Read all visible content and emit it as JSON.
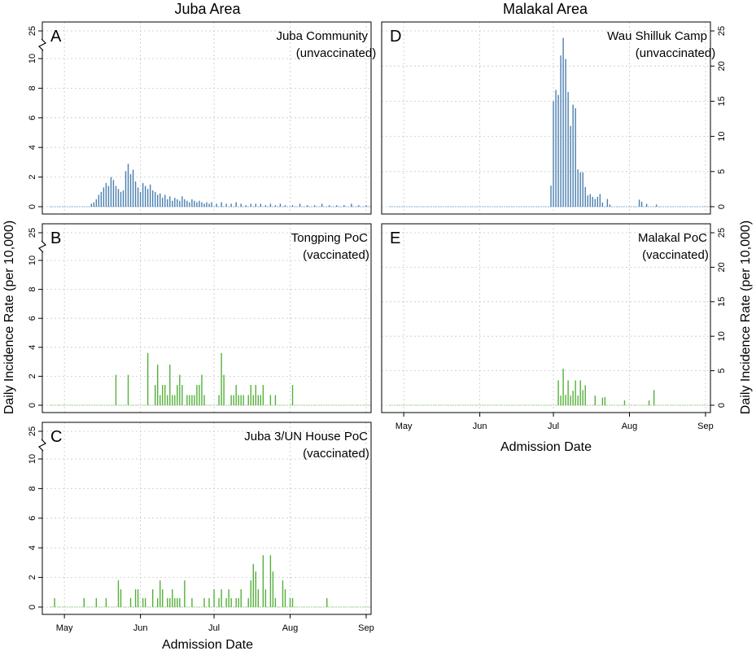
{
  "figure": {
    "left_column_title": "Juba Area",
    "right_column_title": "Malakal Area",
    "left_ylabel": "Daily Incidence Rate (per 10,000)",
    "right_ylabel": "Daily Incidence Rate (per 10,000)",
    "xlabel": "Admission Date",
    "x_ticks": [
      "May",
      "Jun",
      "Jul",
      "Aug",
      "Sep"
    ],
    "x_tick_dates": [
      "2015-05-01",
      "2015-06-01",
      "2015-07-01",
      "2015-08-01",
      "2015-09-01"
    ]
  },
  "colors": {
    "unvaccinated": "#4a7fb0",
    "vaccinated": "#55b03a",
    "baseline_unvaccinated": "#8fb4d4",
    "baseline_vaccinated": "#9fd38f",
    "grid": "#c8c8c8"
  },
  "chart_data": [
    {
      "id": "A",
      "type": "bar",
      "panel_letter": "A",
      "title": "Juba Community",
      "subtitle": "(unvaccinated)",
      "column": "left",
      "color_key": "unvaccinated",
      "xlim": [
        "2015-04-22",
        "2015-09-03"
      ],
      "y_scale": "broken",
      "y_ticks": [
        0,
        2,
        4,
        6,
        8,
        10
      ],
      "y_break_tick": 25,
      "ylim": [
        0,
        12
      ],
      "grid": true,
      "baseline_range": [
        "2015-04-25",
        "2015-09-03"
      ],
      "points": [
        [
          "2015-05-12",
          0.2
        ],
        [
          "2015-05-13",
          0.3
        ],
        [
          "2015-05-14",
          0.5
        ],
        [
          "2015-05-15",
          0.8
        ],
        [
          "2015-05-16",
          1.0
        ],
        [
          "2015-05-17",
          1.3
        ],
        [
          "2015-05-18",
          1.6
        ],
        [
          "2015-05-19",
          1.4
        ],
        [
          "2015-05-20",
          2.0
        ],
        [
          "2015-05-21",
          1.8
        ],
        [
          "2015-05-22",
          1.4
        ],
        [
          "2015-05-23",
          1.2
        ],
        [
          "2015-05-24",
          1.0
        ],
        [
          "2015-05-25",
          1.1
        ],
        [
          "2015-05-26",
          2.4
        ],
        [
          "2015-05-27",
          2.9
        ],
        [
          "2015-05-28",
          2.2
        ],
        [
          "2015-05-29",
          2.5
        ],
        [
          "2015-05-30",
          1.7
        ],
        [
          "2015-05-31",
          1.3
        ],
        [
          "2015-06-01",
          1.0
        ],
        [
          "2015-06-02",
          1.6
        ],
        [
          "2015-06-03",
          1.4
        ],
        [
          "2015-06-04",
          1.2
        ],
        [
          "2015-06-05",
          1.5
        ],
        [
          "2015-06-06",
          1.1
        ],
        [
          "2015-06-07",
          1.0
        ],
        [
          "2015-06-08",
          0.8
        ],
        [
          "2015-06-09",
          0.9
        ],
        [
          "2015-06-10",
          0.6
        ],
        [
          "2015-06-11",
          0.8
        ],
        [
          "2015-06-12",
          0.5
        ],
        [
          "2015-06-13",
          0.7
        ],
        [
          "2015-06-14",
          0.4
        ],
        [
          "2015-06-15",
          0.6
        ],
        [
          "2015-06-16",
          0.5
        ],
        [
          "2015-06-17",
          0.4
        ],
        [
          "2015-06-18",
          0.7
        ],
        [
          "2015-06-19",
          0.5
        ],
        [
          "2015-06-20",
          0.4
        ],
        [
          "2015-06-21",
          0.3
        ],
        [
          "2015-06-22",
          0.5
        ],
        [
          "2015-06-23",
          0.4
        ],
        [
          "2015-06-24",
          0.3
        ],
        [
          "2015-06-25",
          0.4
        ],
        [
          "2015-06-26",
          0.3
        ],
        [
          "2015-06-27",
          0.2
        ],
        [
          "2015-06-28",
          0.3
        ],
        [
          "2015-06-29",
          0.2
        ],
        [
          "2015-06-30",
          0.3
        ],
        [
          "2015-07-02",
          0.2
        ],
        [
          "2015-07-04",
          0.3
        ],
        [
          "2015-07-06",
          0.2
        ],
        [
          "2015-07-08",
          0.2
        ],
        [
          "2015-07-10",
          0.3
        ],
        [
          "2015-07-12",
          0.2
        ],
        [
          "2015-07-14",
          0.1
        ],
        [
          "2015-07-16",
          0.2
        ],
        [
          "2015-07-18",
          0.2
        ],
        [
          "2015-07-20",
          0.2
        ],
        [
          "2015-07-22",
          0.1
        ],
        [
          "2015-07-24",
          0.2
        ],
        [
          "2015-07-26",
          0.1
        ],
        [
          "2015-07-28",
          0.2
        ],
        [
          "2015-07-30",
          0.1
        ],
        [
          "2015-08-02",
          0.1
        ],
        [
          "2015-08-05",
          0.2
        ],
        [
          "2015-08-08",
          0.1
        ],
        [
          "2015-08-11",
          0.1
        ],
        [
          "2015-08-14",
          0.2
        ],
        [
          "2015-08-17",
          0.1
        ],
        [
          "2015-08-20",
          0.1
        ],
        [
          "2015-08-23",
          0.1
        ],
        [
          "2015-08-26",
          0.2
        ],
        [
          "2015-08-29",
          0.1
        ],
        [
          "2015-09-01",
          0.1
        ]
      ]
    },
    {
      "id": "B",
      "type": "bar",
      "panel_letter": "B",
      "title": "Tongping PoC",
      "subtitle": "(vaccinated)",
      "column": "left",
      "color_key": "vaccinated",
      "xlim": [
        "2015-04-22",
        "2015-09-03"
      ],
      "y_scale": "broken",
      "y_ticks": [
        0,
        2,
        4,
        6,
        8,
        10
      ],
      "y_break_tick": 25,
      "ylim": [
        0,
        12
      ],
      "grid": true,
      "baseline_range": [
        "2015-04-25",
        "2015-09-03"
      ],
      "points": [
        [
          "2015-05-22",
          2.1
        ],
        [
          "2015-05-27",
          2.1
        ],
        [
          "2015-06-04",
          3.6
        ],
        [
          "2015-06-07",
          1.4
        ],
        [
          "2015-06-08",
          2.8
        ],
        [
          "2015-06-09",
          0.7
        ],
        [
          "2015-06-10",
          1.4
        ],
        [
          "2015-06-11",
          1.4
        ],
        [
          "2015-06-12",
          0.7
        ],
        [
          "2015-06-13",
          2.8
        ],
        [
          "2015-06-14",
          0.7
        ],
        [
          "2015-06-15",
          0.7
        ],
        [
          "2015-06-16",
          1.4
        ],
        [
          "2015-06-17",
          2.1
        ],
        [
          "2015-06-18",
          1.4
        ],
        [
          "2015-06-20",
          0.7
        ],
        [
          "2015-06-21",
          0.7
        ],
        [
          "2015-06-22",
          0.7
        ],
        [
          "2015-06-23",
          0.7
        ],
        [
          "2015-06-24",
          1.4
        ],
        [
          "2015-06-25",
          1.4
        ],
        [
          "2015-06-26",
          2.1
        ],
        [
          "2015-06-27",
          0.7
        ],
        [
          "2015-07-03",
          0.7
        ],
        [
          "2015-07-04",
          3.6
        ],
        [
          "2015-07-05",
          2.1
        ],
        [
          "2015-07-08",
          0.7
        ],
        [
          "2015-07-09",
          0.7
        ],
        [
          "2015-07-10",
          1.4
        ],
        [
          "2015-07-11",
          0.7
        ],
        [
          "2015-07-12",
          0.7
        ],
        [
          "2015-07-13",
          0.7
        ],
        [
          "2015-07-15",
          0.7
        ],
        [
          "2015-07-16",
          1.4
        ],
        [
          "2015-07-17",
          0.7
        ],
        [
          "2015-07-18",
          1.4
        ],
        [
          "2015-07-19",
          0.7
        ],
        [
          "2015-07-20",
          0.7
        ],
        [
          "2015-07-21",
          1.4
        ],
        [
          "2015-07-24",
          0.7
        ],
        [
          "2015-07-26",
          0.7
        ],
        [
          "2015-08-02",
          1.4
        ]
      ]
    },
    {
      "id": "C",
      "type": "bar",
      "panel_letter": "C",
      "title": "Juba 3/UN House PoC",
      "subtitle": "(vaccinated)",
      "column": "left",
      "color_key": "vaccinated",
      "xlim": [
        "2015-04-22",
        "2015-09-03"
      ],
      "y_scale": "broken",
      "y_ticks": [
        0,
        2,
        4,
        6,
        8,
        10
      ],
      "y_break_tick": 25,
      "ylim": [
        0,
        12
      ],
      "grid": true,
      "baseline_range": [
        "2015-04-25",
        "2015-09-03"
      ],
      "points": [
        [
          "2015-04-27",
          0.6
        ],
        [
          "2015-05-09",
          0.6
        ],
        [
          "2015-05-14",
          0.6
        ],
        [
          "2015-05-18",
          0.6
        ],
        [
          "2015-05-23",
          1.8
        ],
        [
          "2015-05-24",
          1.2
        ],
        [
          "2015-05-28",
          0.6
        ],
        [
          "2015-05-30",
          1.2
        ],
        [
          "2015-05-31",
          1.2
        ],
        [
          "2015-06-02",
          0.6
        ],
        [
          "2015-06-03",
          0.6
        ],
        [
          "2015-06-06",
          1.2
        ],
        [
          "2015-06-08",
          0.6
        ],
        [
          "2015-06-09",
          1.8
        ],
        [
          "2015-06-10",
          1.2
        ],
        [
          "2015-06-12",
          0.6
        ],
        [
          "2015-06-13",
          0.6
        ],
        [
          "2015-06-14",
          1.2
        ],
        [
          "2015-06-15",
          0.6
        ],
        [
          "2015-06-16",
          0.6
        ],
        [
          "2015-06-17",
          0.6
        ],
        [
          "2015-06-19",
          1.8
        ],
        [
          "2015-06-22",
          0.6
        ],
        [
          "2015-06-27",
          0.6
        ],
        [
          "2015-06-29",
          0.6
        ],
        [
          "2015-07-01",
          1.2
        ],
        [
          "2015-07-03",
          0.6
        ],
        [
          "2015-07-04",
          1.2
        ],
        [
          "2015-07-06",
          0.6
        ],
        [
          "2015-07-07",
          1.2
        ],
        [
          "2015-07-08",
          0.6
        ],
        [
          "2015-07-10",
          0.6
        ],
        [
          "2015-07-11",
          0.6
        ],
        [
          "2015-07-12",
          1.2
        ],
        [
          "2015-07-15",
          0.6
        ],
        [
          "2015-07-16",
          1.8
        ],
        [
          "2015-07-17",
          2.9
        ],
        [
          "2015-07-18",
          2.4
        ],
        [
          "2015-07-19",
          1.2
        ],
        [
          "2015-07-21",
          3.5
        ],
        [
          "2015-07-22",
          1.2
        ],
        [
          "2015-07-24",
          3.5
        ],
        [
          "2015-07-25",
          2.4
        ],
        [
          "2015-07-26",
          0.6
        ],
        [
          "2015-07-29",
          1.8
        ],
        [
          "2015-07-30",
          1.2
        ],
        [
          "2015-08-01",
          0.6
        ],
        [
          "2015-08-02",
          0.6
        ],
        [
          "2015-08-16",
          0.6
        ]
      ]
    },
    {
      "id": "D",
      "type": "bar",
      "panel_letter": "D",
      "title": "Wau Shilluk Camp",
      "subtitle": "(unvaccinated)",
      "column": "right",
      "color_key": "unvaccinated",
      "xlim": [
        "2015-04-22",
        "2015-09-03"
      ],
      "y_scale": "linear",
      "y_ticks": [
        0,
        5,
        10,
        15,
        20,
        25
      ],
      "ylim": [
        0,
        25
      ],
      "grid": true,
      "baseline_range": [
        "2015-04-25",
        "2015-09-03"
      ],
      "points": [
        [
          "2015-06-30",
          3.0
        ],
        [
          "2015-07-01",
          15.0
        ],
        [
          "2015-07-02",
          16.6
        ],
        [
          "2015-07-03",
          15.9
        ],
        [
          "2015-07-04",
          21.5
        ],
        [
          "2015-07-05",
          24.0
        ],
        [
          "2015-07-06",
          21.0
        ],
        [
          "2015-07-07",
          16.3
        ],
        [
          "2015-07-08",
          11.5
        ],
        [
          "2015-07-09",
          14.5
        ],
        [
          "2015-07-10",
          14.0
        ],
        [
          "2015-07-11",
          5.3
        ],
        [
          "2015-07-12",
          4.9
        ],
        [
          "2015-07-13",
          4.9
        ],
        [
          "2015-07-14",
          2.8
        ],
        [
          "2015-07-15",
          1.6
        ],
        [
          "2015-07-16",
          1.8
        ],
        [
          "2015-07-17",
          1.4
        ],
        [
          "2015-07-18",
          1.1
        ],
        [
          "2015-07-19",
          1.4
        ],
        [
          "2015-07-20",
          1.8
        ],
        [
          "2015-07-21",
          0.6
        ],
        [
          "2015-07-23",
          1.1
        ],
        [
          "2015-07-24",
          0.3
        ],
        [
          "2015-08-05",
          1.0
        ],
        [
          "2015-08-06",
          0.7
        ],
        [
          "2015-08-08",
          0.4
        ],
        [
          "2015-08-12",
          0.3
        ]
      ]
    },
    {
      "id": "E",
      "type": "bar",
      "panel_letter": "E",
      "title": "Malakal PoC",
      "subtitle": "(vaccinated)",
      "column": "right",
      "color_key": "vaccinated",
      "xlim": [
        "2015-04-22",
        "2015-09-03"
      ],
      "y_scale": "linear",
      "y_ticks": [
        0,
        5,
        10,
        15,
        20,
        25
      ],
      "ylim": [
        0,
        25
      ],
      "grid": true,
      "baseline_range": [
        "2015-04-25",
        "2015-09-03"
      ],
      "points": [
        [
          "2015-07-03",
          3.6
        ],
        [
          "2015-07-04",
          1.4
        ],
        [
          "2015-07-05",
          5.3
        ],
        [
          "2015-07-06",
          1.5
        ],
        [
          "2015-07-07",
          3.6
        ],
        [
          "2015-07-08",
          1.4
        ],
        [
          "2015-07-09",
          2.1
        ],
        [
          "2015-07-10",
          3.6
        ],
        [
          "2015-07-11",
          1.4
        ],
        [
          "2015-07-12",
          3.6
        ],
        [
          "2015-07-13",
          2.2
        ],
        [
          "2015-07-14",
          2.9
        ],
        [
          "2015-07-18",
          1.4
        ],
        [
          "2015-07-21",
          1.1
        ],
        [
          "2015-07-22",
          1.2
        ],
        [
          "2015-07-30",
          0.7
        ],
        [
          "2015-08-09",
          0.7
        ],
        [
          "2015-08-11",
          2.2
        ]
      ]
    }
  ]
}
